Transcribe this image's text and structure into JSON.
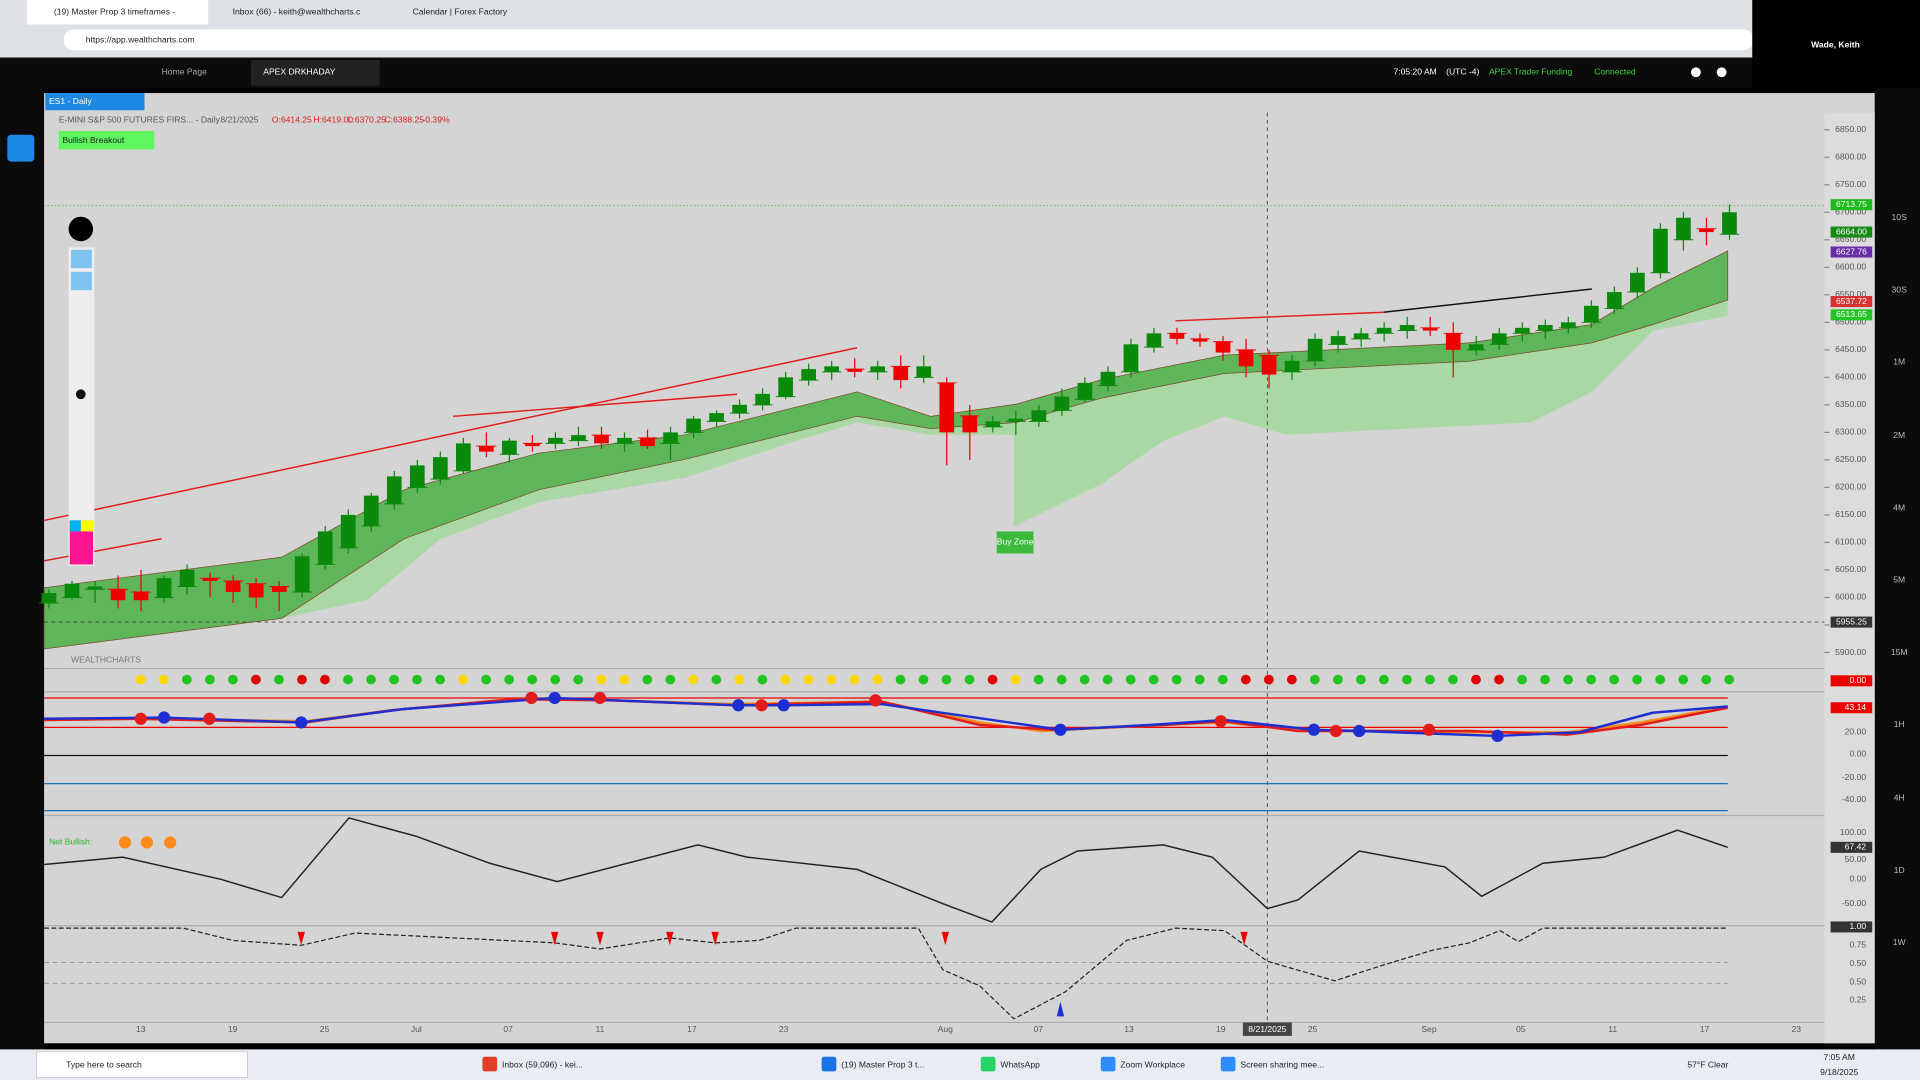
{
  "browser": {
    "tabs": [
      "(19) Master Prop 3 timeframes - ",
      "Inbox (66) - keith@wealthcharts.c",
      "Calendar | Forex Factory"
    ],
    "url": "https://app.wealthcharts.com",
    "user": "Wade, Keith"
  },
  "app_header": {
    "tabs": [
      "Home Page",
      "APEX DRKHADAY"
    ],
    "time": "7:05:20 AM",
    "timezone": "(UTC -4)",
    "account": "APEX Trader Funding",
    "status": "Connected"
  },
  "chart_data": {
    "type": "candlestick",
    "symbol": "ES1 - Daily",
    "title": "E-MINI S&P 500 FUTURES FIRS... - Daily",
    "date": "8/21/2025",
    "ohlc_labels": [
      "O:6414.25",
      "H:6419.00",
      "L:6370.25",
      "C:6388.25",
      "-0.39%"
    ],
    "annotations": [
      "Bullish Breakout",
      "Buy Zone"
    ],
    "watermark": "WEALTHCHARTS",
    "x_labels": [
      "13",
      "19",
      "25",
      "Jul",
      "07",
      "11",
      "17",
      "23",
      "Aug",
      "07",
      "13",
      "19",
      "25",
      "Sep",
      "05",
      "11",
      "17",
      "23"
    ],
    "crosshair_date": "8/21/2025",
    "ylim": [
      5873,
      6881
    ],
    "yticks": [
      {
        "value": 6850,
        "label": "6850.00"
      },
      {
        "value": 6800,
        "label": "6800.00"
      },
      {
        "value": 6750,
        "label": "6750.00"
      },
      {
        "value": 6700,
        "label": "6700.00"
      },
      {
        "value": 6650,
        "label": "6650.00"
      },
      {
        "value": 6600,
        "label": "6600.00"
      },
      {
        "value": 6550,
        "label": "6550.00"
      },
      {
        "value": 6500,
        "label": "6500.00"
      },
      {
        "value": 6450,
        "label": "6450.00"
      },
      {
        "value": 6400,
        "label": "6400.00"
      },
      {
        "value": 6350,
        "label": "6350.00"
      },
      {
        "value": 6300,
        "label": "6300.00"
      },
      {
        "value": 6250,
        "label": "6250.00"
      },
      {
        "value": 6200,
        "label": "6200.00"
      },
      {
        "value": 6150,
        "label": "6150.00"
      },
      {
        "value": 6100,
        "label": "6100.00"
      },
      {
        "value": 6050,
        "label": "6050.00"
      },
      {
        "value": 6000,
        "label": "6000.00"
      },
      {
        "value": 5950,
        "label": "5950.00"
      },
      {
        "value": 5900,
        "label": "5900.00"
      }
    ],
    "up_color": "#0a8a0a",
    "down_color": "#f00000",
    "candles": [
      [
        5990,
        6015,
        5980,
        6008
      ],
      [
        6000,
        6030,
        5995,
        6025
      ],
      [
        6015,
        6030,
        5990,
        6020
      ],
      [
        6015,
        6040,
        5980,
        5995
      ],
      [
        6010,
        6050,
        5975,
        5995
      ],
      [
        6000,
        6040,
        5990,
        6035
      ],
      [
        6020,
        6060,
        6005,
        6050
      ],
      [
        6035,
        6045,
        6000,
        6030
      ],
      [
        6030,
        6040,
        5990,
        6010
      ],
      [
        6025,
        6035,
        5980,
        6000
      ],
      [
        6020,
        6030,
        5975,
        6010
      ],
      [
        6010,
        6080,
        6000,
        6075
      ],
      [
        6060,
        6130,
        6050,
        6120
      ],
      [
        6090,
        6160,
        6080,
        6150
      ],
      [
        6130,
        6190,
        6120,
        6185
      ],
      [
        6170,
        6230,
        6160,
        6220
      ],
      [
        6200,
        6250,
        6190,
        6240
      ],
      [
        6215,
        6265,
        6205,
        6255
      ],
      [
        6230,
        6290,
        6225,
        6280
      ],
      [
        6275,
        6300,
        6255,
        6265
      ],
      [
        6260,
        6290,
        6245,
        6285
      ],
      [
        6280,
        6295,
        6265,
        6275
      ],
      [
        6280,
        6300,
        6270,
        6290
      ],
      [
        6285,
        6310,
        6275,
        6295
      ],
      [
        6295,
        6310,
        6270,
        6280
      ],
      [
        6280,
        6300,
        6265,
        6290
      ],
      [
        6290,
        6305,
        6270,
        6275
      ],
      [
        6280,
        6310,
        6250,
        6300
      ],
      [
        6300,
        6330,
        6290,
        6325
      ],
      [
        6320,
        6340,
        6310,
        6335
      ],
      [
        6335,
        6360,
        6325,
        6350
      ],
      [
        6350,
        6380,
        6340,
        6370
      ],
      [
        6365,
        6410,
        6360,
        6400
      ],
      [
        6395,
        6425,
        6385,
        6415
      ],
      [
        6410,
        6430,
        6395,
        6420
      ],
      [
        6415,
        6435,
        6400,
        6410
      ],
      [
        6410,
        6430,
        6395,
        6420
      ],
      [
        6420,
        6440,
        6380,
        6395
      ],
      [
        6400,
        6440,
        6390,
        6420
      ],
      [
        6390,
        6400,
        6240,
        6300
      ],
      [
        6330,
        6350,
        6250,
        6300
      ],
      [
        6310,
        6330,
        6300,
        6320
      ],
      [
        6320,
        6340,
        6295,
        6325
      ],
      [
        6320,
        6350,
        6310,
        6340
      ],
      [
        6340,
        6380,
        6330,
        6365
      ],
      [
        6360,
        6400,
        6355,
        6390
      ],
      [
        6385,
        6420,
        6375,
        6410
      ],
      [
        6410,
        6470,
        6400,
        6460
      ],
      [
        6455,
        6490,
        6445,
        6480
      ],
      [
        6480,
        6490,
        6460,
        6470
      ],
      [
        6470,
        6480,
        6455,
        6465
      ],
      [
        6465,
        6475,
        6430,
        6445
      ],
      [
        6450,
        6470,
        6400,
        6420
      ],
      [
        6440,
        6450,
        6380,
        6405
      ],
      [
        6410,
        6440,
        6395,
        6430
      ],
      [
        6430,
        6480,
        6420,
        6470
      ],
      [
        6460,
        6485,
        6445,
        6475
      ],
      [
        6470,
        6490,
        6455,
        6480
      ],
      [
        6480,
        6500,
        6465,
        6490
      ],
      [
        6485,
        6510,
        6470,
        6495
      ],
      [
        6490,
        6510,
        6475,
        6485
      ],
      [
        6480,
        6500,
        6400,
        6450
      ],
      [
        6450,
        6475,
        6440,
        6460
      ],
      [
        6460,
        6490,
        6450,
        6480
      ],
      [
        6480,
        6500,
        6465,
        6490
      ],
      [
        6485,
        6505,
        6470,
        6495
      ],
      [
        6490,
        6510,
        6480,
        6500
      ],
      [
        6500,
        6540,
        6490,
        6530
      ],
      [
        6525,
        6565,
        6515,
        6555
      ],
      [
        6555,
        6600,
        6545,
        6590
      ],
      [
        6590,
        6680,
        6580,
        6670
      ],
      [
        6650,
        6700,
        6630,
        6690
      ],
      [
        6670,
        6690,
        6640,
        6664
      ],
      [
        6660,
        6714,
        6650,
        6700
      ]
    ],
    "price_tags": [
      {
        "value": 6713.75,
        "label": "6713.75",
        "color": "#1fb91f"
      },
      {
        "value": 6664,
        "label": "6664.00",
        "color": "#158a15"
      },
      {
        "value": 6627.76,
        "label": "6627.76",
        "color": "#6a2ca8"
      },
      {
        "value": 6537.72,
        "label": "6537.72",
        "color": "#d93030"
      },
      {
        "value": 6513.65,
        "label": "6513.65",
        "color": "#27c427"
      }
    ],
    "crosshair_price": {
      "value": 5955.25,
      "label": "5955.25"
    }
  },
  "indicators": {
    "signal_dots": [
      "#ffd700",
      "#ffd700",
      "#21c421",
      "#21c421",
      "#21c421",
      "#e00000",
      "#21c421",
      "#e00000",
      "#e00000",
      "#21c421",
      "#21c421",
      "#21c421",
      "#21c421",
      "#21c421",
      "#ffd700",
      "#21c421",
      "#21c421",
      "#21c421",
      "#21c421",
      "#21c421",
      "#ffd700",
      "#ffd700",
      "#21c421",
      "#21c421",
      "#ffd700",
      "#21c421",
      "#ffd700",
      "#21c421",
      "#ffd700",
      "#ffd700",
      "#ffd700",
      "#ffd700",
      "#ffd700",
      "#21c421",
      "#21c421",
      "#21c421",
      "#21c421",
      "#e00000",
      "#ffd700",
      "#21c421",
      "#21c421",
      "#21c421",
      "#21c421",
      "#21c421",
      "#21c421",
      "#21c421",
      "#21c421",
      "#21c421",
      "#e00000",
      "#e00000",
      "#e00000",
      "#21c421",
      "#21c421",
      "#21c421",
      "#21c421",
      "#21c421",
      "#21c421",
      "#21c421",
      "#e00000",
      "#e00000",
      "#21c421",
      "#21c421",
      "#21c421",
      "#21c421",
      "#21c421",
      "#21c421",
      "#21c421",
      "#21c421",
      "#21c421",
      "#21c421"
    ],
    "oscillator_labels": [
      "0.00",
      "43.14",
      "20.00",
      "0.00",
      "-20.00",
      "-40.00"
    ],
    "net_bullish_label": "Net Bullish:",
    "momentum_labels": [
      "100.00",
      "67.42",
      "50.00",
      "0.00",
      "-50.00"
    ],
    "signal_labels": [
      "1.00",
      "0.75",
      "0.50",
      "0.50",
      "0.25"
    ]
  },
  "timeframes": [
    "10S",
    "30S",
    "1M",
    "2M",
    "4M",
    "5M",
    "15M",
    "1H",
    "4H",
    "1D",
    "1W"
  ],
  "taskbar": {
    "search": "Type here to search",
    "apps": [
      "Inbox (59,096) - kei...",
      "(19) Master Prop 3 t...",
      "WhatsApp",
      "Zoom Workplace",
      "Screen sharing mee..."
    ],
    "weather": "57°F Clear",
    "time": "7:05 AM",
    "date": "9/18/2025"
  }
}
